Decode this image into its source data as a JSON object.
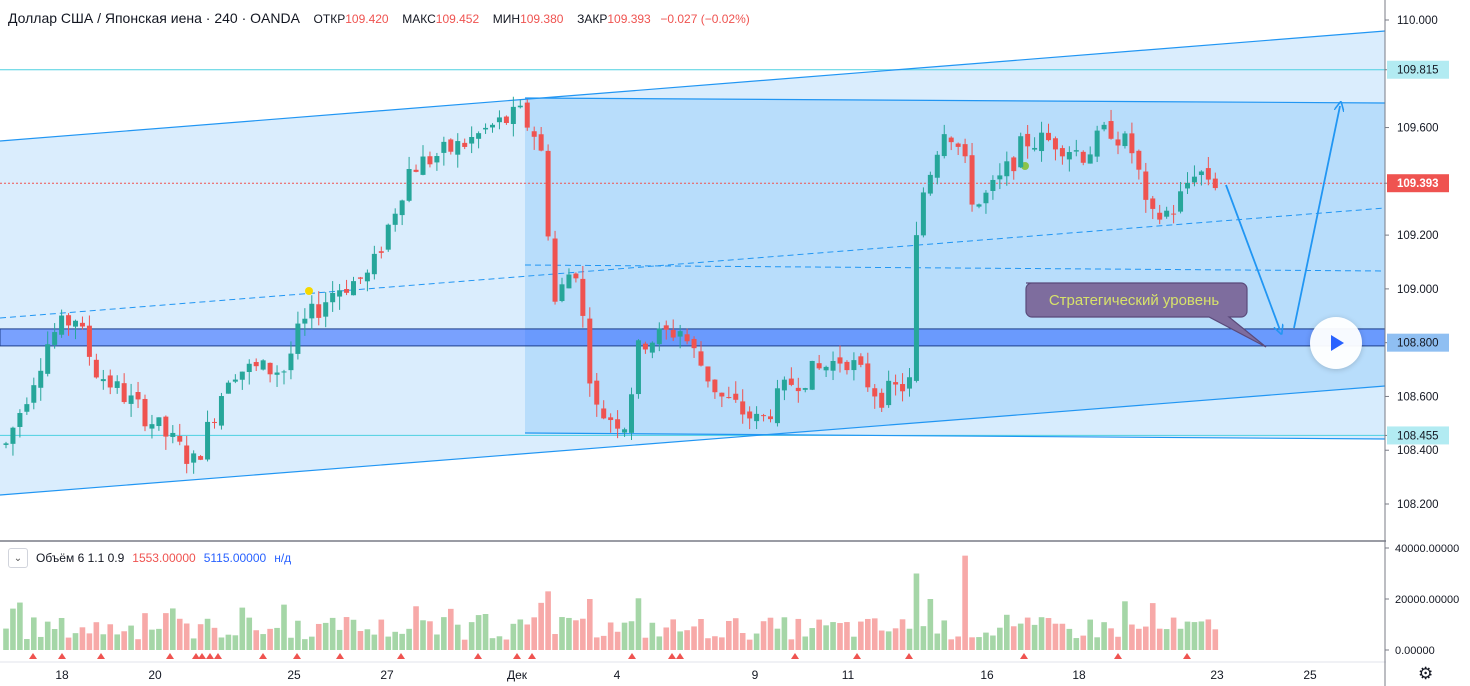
{
  "header": {
    "symbol": "Доллар США / Японская иена · 240 · OANDA",
    "open_label": "ОТКР",
    "open_value": "109.420",
    "high_label": "МАКС",
    "high_value": "109.452",
    "low_label": "МИН",
    "low_value": "109.380",
    "close_label": "ЗАКР",
    "close_value": "109.393",
    "change": "−0.027 (−0.02%)"
  },
  "volume_legend": {
    "title": "Объём 6 1.1 0.9",
    "value1": "1553.00000",
    "value2": "5115.00000",
    "na": "н/д"
  },
  "colors": {
    "up": "#26a69a",
    "down": "#ef5350",
    "vol_up": "#a5d6a7",
    "vol_down": "#f7a9a8",
    "channel": "#2196f3",
    "zone": "#2f6fd6",
    "price_tag": "#ef5350"
  },
  "annotation": "Стратегический уровень",
  "chart_data": {
    "type": "candlestick",
    "symbol": "USD/JPY",
    "interval": "240",
    "ylim": [
      108.1,
      110.05
    ],
    "y_ticks": [
      "110.000",
      "109.815",
      "109.600",
      "109.393",
      "109.200",
      "109.000",
      "108.800",
      "108.600",
      "108.455",
      "108.400",
      "108.200"
    ],
    "highlight_prices": [
      {
        "value": "109.815",
        "kind": "level"
      },
      {
        "value": "109.393",
        "kind": "last"
      },
      {
        "value": "108.800",
        "kind": "level"
      },
      {
        "value": "108.455",
        "kind": "level"
      }
    ],
    "x_ticks": [
      "18",
      "20",
      "25",
      "27",
      "Дек",
      "4",
      "9",
      "11",
      "16",
      "18",
      "23",
      "25"
    ],
    "volume_ticks": [
      "40000.00000",
      "20000.00000",
      "0.00000"
    ],
    "volume_ylim": [
      0,
      40000
    ],
    "last_close": 109.393,
    "strategic_level": 108.8
  }
}
